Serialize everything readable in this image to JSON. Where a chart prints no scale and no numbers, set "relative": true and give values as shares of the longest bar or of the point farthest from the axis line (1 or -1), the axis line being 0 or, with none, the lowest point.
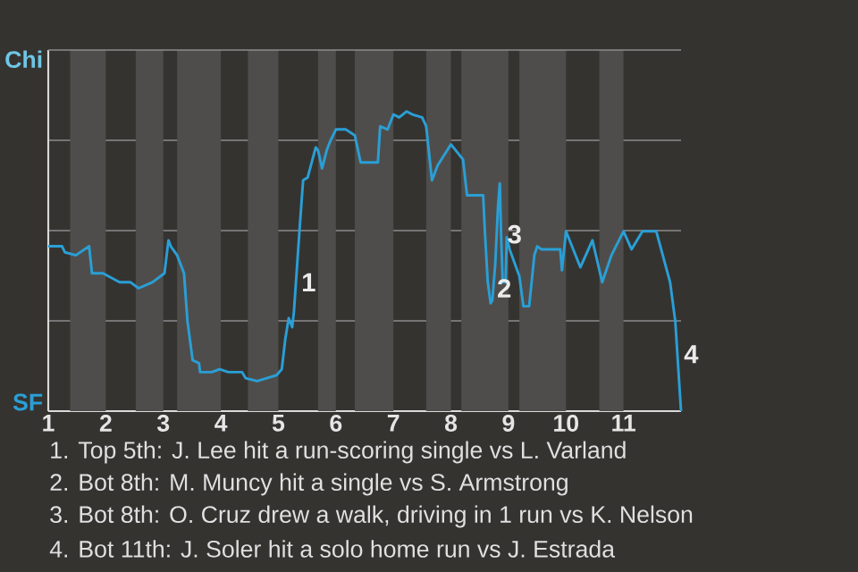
{
  "chart_data": {
    "type": "line",
    "relative": true,
    "x": [
      1.0,
      1.24,
      1.29,
      1.48,
      1.71,
      1.76,
      1.95,
      2.24,
      2.43,
      2.57,
      2.81,
      3.02,
      3.09,
      3.13,
      3.24,
      3.36,
      3.42,
      3.51,
      3.62,
      3.64,
      3.84,
      3.98,
      4.13,
      4.37,
      4.43,
      4.63,
      4.8,
      4.97,
      5.06,
      5.12,
      5.18,
      5.24,
      5.27,
      5.37,
      5.43,
      5.51,
      5.65,
      5.69,
      5.76,
      5.84,
      5.9,
      6.0,
      6.17,
      6.33,
      6.43,
      6.73,
      6.77,
      6.9,
      7.0,
      7.1,
      7.23,
      7.33,
      7.5,
      7.57,
      7.67,
      7.77,
      8.0,
      8.21,
      8.28,
      8.56,
      8.59,
      8.64,
      8.69,
      8.72,
      8.77,
      8.82,
      8.85,
      8.87,
      8.9,
      8.95,
      8.97,
      9.02,
      9.19,
      9.26,
      9.36,
      9.45,
      9.5,
      9.57,
      9.9,
      9.93,
      10.0,
      10.25,
      10.46,
      10.63,
      10.79,
      11.0,
      11.14,
      11.33,
      11.57,
      11.81,
      11.9,
      12.0
    ],
    "series": [
      {
        "color": "#2a9fd6",
        "values": [
          0.55,
          0.55,
          0.53,
          0.52,
          0.55,
          0.46,
          0.46,
          0.43,
          0.43,
          0.41,
          0.43,
          0.46,
          0.57,
          0.55,
          0.52,
          0.46,
          0.3,
          0.17,
          0.16,
          0.13,
          0.13,
          0.14,
          0.13,
          0.13,
          0.11,
          0.1,
          0.11,
          0.12,
          0.14,
          0.24,
          0.31,
          0.28,
          0.33,
          0.61,
          0.77,
          0.78,
          0.88,
          0.87,
          0.81,
          0.87,
          0.9,
          0.94,
          0.94,
          0.92,
          0.83,
          0.83,
          0.95,
          0.94,
          0.99,
          0.98,
          1,
          0.99,
          0.98,
          0.95,
          0.77,
          0.82,
          0.89,
          0.84,
          0.72,
          0.72,
          0.6,
          0.43,
          0.36,
          0.37,
          0.49,
          0.69,
          0.76,
          0.6,
          0.43,
          0.43,
          0.58,
          0.54,
          0.45,
          0.35,
          0.35,
          0.52,
          0.55,
          0.54,
          0.54,
          0.47,
          0.6,
          0.48,
          0.57,
          0.43,
          0.52,
          0.6,
          0.54,
          0.6,
          0.6,
          0.43,
          0.3,
          0
        ]
      }
    ],
    "xlim": [
      1,
      12
    ],
    "xticks": [
      1,
      2,
      3,
      4,
      5,
      6,
      7,
      8,
      9,
      10,
      11
    ],
    "grid": "y",
    "bands": [
      {
        "axis": "x",
        "from": 1.38,
        "to": 2.0,
        "color": "#4f4d4b"
      },
      {
        "axis": "x",
        "from": 2.52,
        "to": 3.0,
        "color": "#4f4d4b"
      },
      {
        "axis": "x",
        "from": 3.24,
        "to": 4.0,
        "color": "#4f4d4b"
      },
      {
        "axis": "x",
        "from": 4.47,
        "to": 5.0,
        "color": "#4f4d4b"
      },
      {
        "axis": "x",
        "from": 5.69,
        "to": 6.0,
        "color": "#4f4d4b"
      },
      {
        "axis": "x",
        "from": 6.33,
        "to": 7.0,
        "color": "#4f4d4b"
      },
      {
        "axis": "x",
        "from": 7.57,
        "to": 8.0,
        "color": "#4f4d4b"
      },
      {
        "axis": "x",
        "from": 8.18,
        "to": 9.0,
        "color": "#4f4d4b"
      },
      {
        "axis": "x",
        "from": 9.19,
        "to": 10.0,
        "color": "#4f4d4b"
      },
      {
        "axis": "x",
        "from": 10.58,
        "to": 11.0,
        "color": "#4f4d4b"
      }
    ],
    "annotations": [
      "Chi",
      "SF",
      {
        "text": "1",
        "x": 5.35,
        "y": 0.43
      },
      {
        "text": "2",
        "x": 8.75,
        "y": 0.41
      },
      {
        "text": "3",
        "x": 8.93,
        "y": 0.59
      },
      {
        "text": "4",
        "x": 12,
        "y": 0.19
      },
      "1. Top 5th: J. Lee hit a run-scoring single vs L. Varland",
      "2. Bot 8th: M. Muncy hit a single vs S. Armstrong",
      "3. Bot 8th: O. Cruz drew a walk, driving in 1 run vs K. Nelson",
      "4. Bot 11th: J. Soler hit a solo home run vs J. Estrada"
    ]
  }
}
